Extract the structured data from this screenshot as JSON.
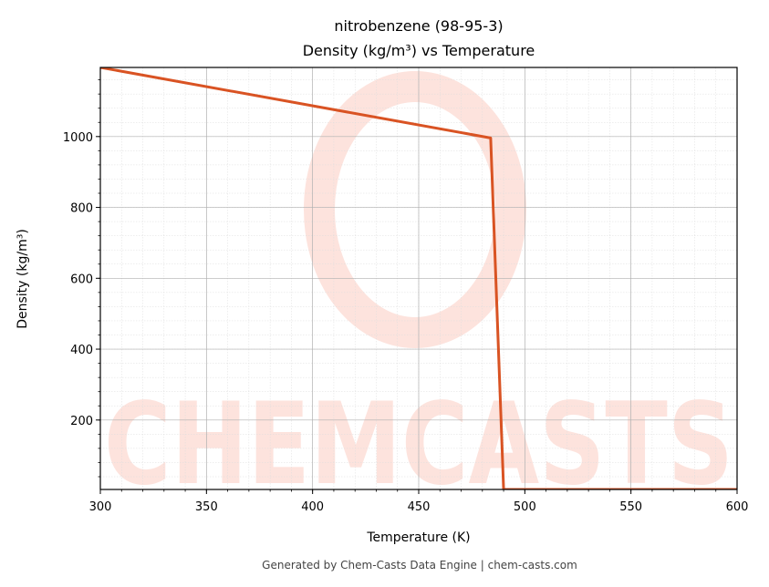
{
  "chart_data": {
    "type": "line",
    "title": "nitrobenzene (98-95-3)",
    "subtitle": "Density (kg/m³) vs Temperature",
    "xlabel": "Temperature (K)",
    "ylabel": "Density (kg/m³)",
    "xlim": [
      300,
      600
    ],
    "ylim": [
      4,
      1195
    ],
    "x_ticks": [
      300,
      350,
      400,
      450,
      500,
      550,
      600
    ],
    "y_ticks": [
      200,
      400,
      600,
      800,
      1000
    ],
    "grid": true,
    "legend": "none",
    "series": [
      {
        "color": "#d95323",
        "x": [
          300,
          483.9,
          490,
          600
        ],
        "y": [
          1195,
          996,
          4,
          4
        ]
      }
    ]
  },
  "watermark": {
    "text": "CHEMCASTS",
    "color": "#fde3dd"
  },
  "footer": "Generated by Chem-Casts Data Engine | chem-casts.com"
}
